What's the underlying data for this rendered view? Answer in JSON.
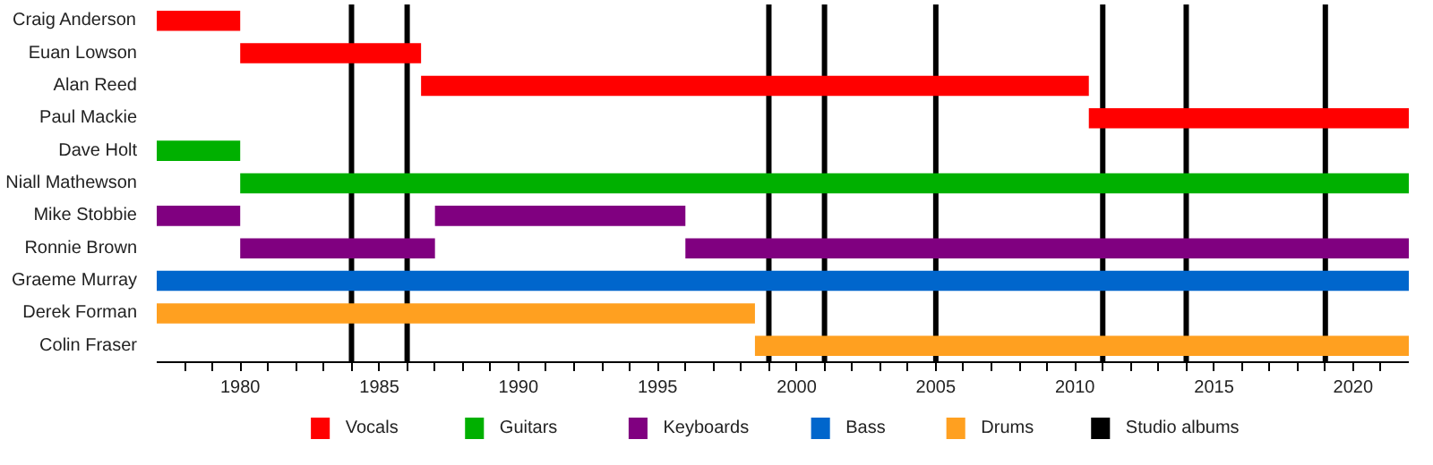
{
  "chart_data": {
    "type": "bar",
    "orientation": "horizontal",
    "categories": [
      "Craig Anderson",
      "Euan Lowson",
      "Alan Reed",
      "Paul Mackie",
      "Dave Holt",
      "Niall Mathewson",
      "Mike Stobbie",
      "Ronnie Brown",
      "Graeme Murray",
      "Derek Forman",
      "Colin Fraser"
    ],
    "series": [
      {
        "name": "Vocals",
        "color": "#ff0000",
        "base": [
          1977,
          1980,
          1986.5,
          2010.5,
          null,
          null,
          null,
          null,
          null,
          null,
          null
        ],
        "values": [
          3,
          6.5,
          24,
          11.5,
          null,
          null,
          null,
          null,
          null,
          null,
          null
        ]
      },
      {
        "name": "Guitars",
        "color": "#00b000",
        "base": [
          null,
          null,
          null,
          null,
          1977,
          1980,
          null,
          null,
          null,
          null,
          null
        ],
        "values": [
          null,
          null,
          null,
          null,
          3,
          42,
          null,
          null,
          null,
          null,
          null
        ]
      },
      {
        "name": "Keyboards",
        "color": "#800080",
        "base": [
          null,
          null,
          null,
          null,
          null,
          null,
          1977,
          1980,
          null,
          null,
          null
        ],
        "values": [
          null,
          null,
          null,
          null,
          null,
          null,
          3,
          7,
          null,
          null,
          null
        ]
      },
      {
        "color": "#800080",
        "base": [
          null,
          null,
          null,
          null,
          null,
          null,
          1987,
          1996,
          null,
          null,
          null
        ],
        "values": [
          null,
          null,
          null,
          null,
          null,
          null,
          9,
          26,
          null,
          null,
          null
        ]
      },
      {
        "name": "Bass",
        "color": "#0066cc",
        "base": [
          null,
          null,
          null,
          null,
          null,
          null,
          null,
          null,
          1977,
          null,
          null
        ],
        "values": [
          null,
          null,
          null,
          null,
          null,
          null,
          null,
          null,
          45,
          null,
          null
        ]
      },
      {
        "name": "Drums",
        "color": "#ffa020",
        "base": [
          null,
          null,
          null,
          null,
          null,
          null,
          null,
          null,
          null,
          1977,
          1998.5
        ],
        "values": [
          null,
          null,
          null,
          null,
          null,
          null,
          null,
          null,
          null,
          21.5,
          23.5
        ]
      }
    ],
    "ref_lines": [
      {
        "axis": "x",
        "value": 1984,
        "label": "Studio albums",
        "color": "#000000"
      },
      {
        "axis": "x",
        "value": 1986,
        "color": "#000000"
      },
      {
        "axis": "x",
        "value": 1999,
        "color": "#000000"
      },
      {
        "axis": "x",
        "value": 2001,
        "color": "#000000"
      },
      {
        "axis": "x",
        "value": 2005,
        "color": "#000000"
      },
      {
        "axis": "x",
        "value": 2011,
        "color": "#000000"
      },
      {
        "axis": "x",
        "value": 2014,
        "color": "#000000"
      },
      {
        "axis": "x",
        "value": 2019,
        "color": "#000000"
      }
    ],
    "xlim": [
      1977,
      2022
    ],
    "xticks": [
      {
        "value": 1978,
        "label": null
      },
      {
        "value": 1979,
        "label": null
      },
      1980,
      {
        "value": 1981,
        "label": null
      },
      {
        "value": 1982,
        "label": null
      },
      {
        "value": 1983,
        "label": null
      },
      {
        "value": 1984,
        "label": null
      },
      1985,
      {
        "value": 1986,
        "label": null
      },
      {
        "value": 1987,
        "label": null
      },
      {
        "value": 1988,
        "label": null
      },
      {
        "value": 1989,
        "label": null
      },
      1990,
      {
        "value": 1991,
        "label": null
      },
      {
        "value": 1992,
        "label": null
      },
      {
        "value": 1993,
        "label": null
      },
      {
        "value": 1994,
        "label": null
      },
      1995,
      {
        "value": 1996,
        "label": null
      },
      {
        "value": 1997,
        "label": null
      },
      {
        "value": 1998,
        "label": null
      },
      {
        "value": 1999,
        "label": null
      },
      2000,
      {
        "value": 2001,
        "label": null
      },
      {
        "value": 2002,
        "label": null
      },
      {
        "value": 2003,
        "label": null
      },
      {
        "value": 2004,
        "label": null
      },
      2005,
      {
        "value": 2006,
        "label": null
      },
      {
        "value": 2007,
        "label": null
      },
      {
        "value": 2008,
        "label": null
      },
      {
        "value": 2009,
        "label": null
      },
      2010,
      {
        "value": 2011,
        "label": null
      },
      {
        "value": 2012,
        "label": null
      },
      {
        "value": 2013,
        "label": null
      },
      {
        "value": 2014,
        "label": null
      },
      2015,
      {
        "value": 2016,
        "label": null
      },
      {
        "value": 2017,
        "label": null
      },
      {
        "value": 2018,
        "label": null
      },
      {
        "value": 2019,
        "label": null
      },
      2020,
      {
        "value": 2021,
        "label": null
      }
    ],
    "grid": false,
    "legend": "bottom"
  }
}
